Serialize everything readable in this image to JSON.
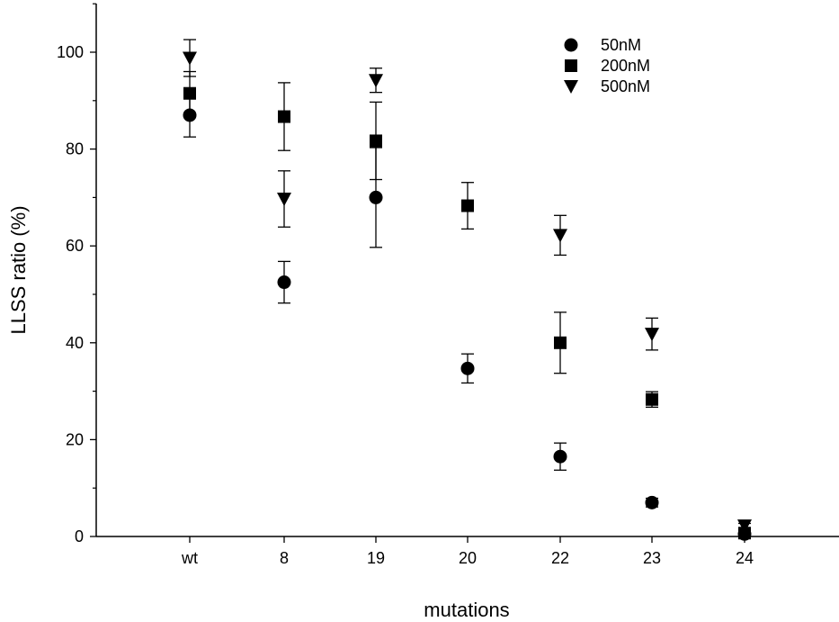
{
  "chart_data": {
    "type": "scatter",
    "title": "",
    "xlabel": "mutations",
    "ylabel": "LLSS ratio (%)",
    "categories": [
      "wt",
      "8",
      "19",
      "20",
      "22",
      "23",
      "24"
    ],
    "ylim": [
      0,
      110
    ],
    "yticks": [
      0,
      20,
      40,
      60,
      80,
      100
    ],
    "grid": false,
    "legend_position": "top-right",
    "series": [
      {
        "name": "50nM",
        "marker": "circle",
        "values": [
          87,
          52.5,
          70,
          34.7,
          16.5,
          7,
          0.5
        ],
        "errors": [
          4.5,
          4.3,
          10.3,
          3.0,
          2.8,
          0.9,
          0.5
        ]
      },
      {
        "name": "200nM",
        "marker": "square",
        "values": [
          91.5,
          86.7,
          81.7,
          68.3,
          40,
          28.3,
          0.7
        ],
        "errors": [
          4.5,
          7.0,
          8.0,
          4.8,
          6.3,
          1.6,
          0.5
        ]
      },
      {
        "name": "500nM",
        "marker": "triangle-down",
        "values": [
          98.8,
          69.7,
          94.2,
          null,
          62.2,
          41.8,
          2.2
        ],
        "errors": [
          3.8,
          5.8,
          2.5,
          null,
          4.1,
          3.3,
          0.5
        ]
      }
    ]
  }
}
